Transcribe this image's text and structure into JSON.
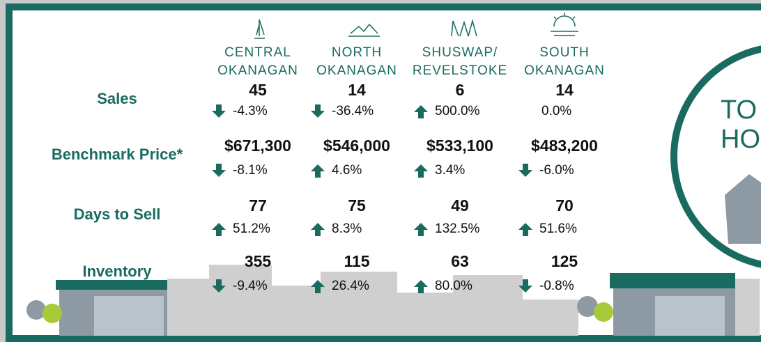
{
  "regions": [
    {
      "lines": [
        "CENTRAL",
        "OKANAGAN"
      ]
    },
    {
      "lines": [
        "NORTH",
        "OKANAGAN"
      ]
    },
    {
      "lines": [
        "SHUSWAP/",
        "REVELSTOKE"
      ]
    },
    {
      "lines": [
        "SOUTH",
        "OKANAGAN"
      ]
    }
  ],
  "rows": [
    {
      "label": "Sales",
      "values": [
        "45",
        "14",
        "6",
        "14"
      ],
      "changes": [
        "-4.3%",
        "-36.4%",
        "500.0%",
        "0.0%"
      ],
      "trends": [
        "down",
        "down",
        "up",
        null
      ]
    },
    {
      "label": "Benchmark Price*",
      "values": [
        "$671,300",
        "$546,000",
        "$533,100",
        "$483,200"
      ],
      "changes": [
        "-8.1%",
        "4.6%",
        "3.4%",
        "-6.0%"
      ],
      "trends": [
        "down",
        "up",
        "up",
        "down"
      ]
    },
    {
      "label": "Days to Sell",
      "values": [
        "77",
        "75",
        "49",
        "70"
      ],
      "changes": [
        "51.2%",
        "8.3%",
        "132.5%",
        "51.6%"
      ],
      "trends": [
        "up",
        "up",
        "up",
        "up"
      ]
    },
    {
      "label": "Inventory",
      "values": [
        "355",
        "115",
        "63",
        "125"
      ],
      "changes": [
        "-9.4%",
        "26.4%",
        "80.0%",
        "-0.8%"
      ],
      "trends": [
        "down",
        "up",
        "up",
        "down"
      ]
    }
  ],
  "badge": {
    "lines": [
      "TO",
      "HO"
    ]
  },
  "accent_color": "#1a6b5f"
}
